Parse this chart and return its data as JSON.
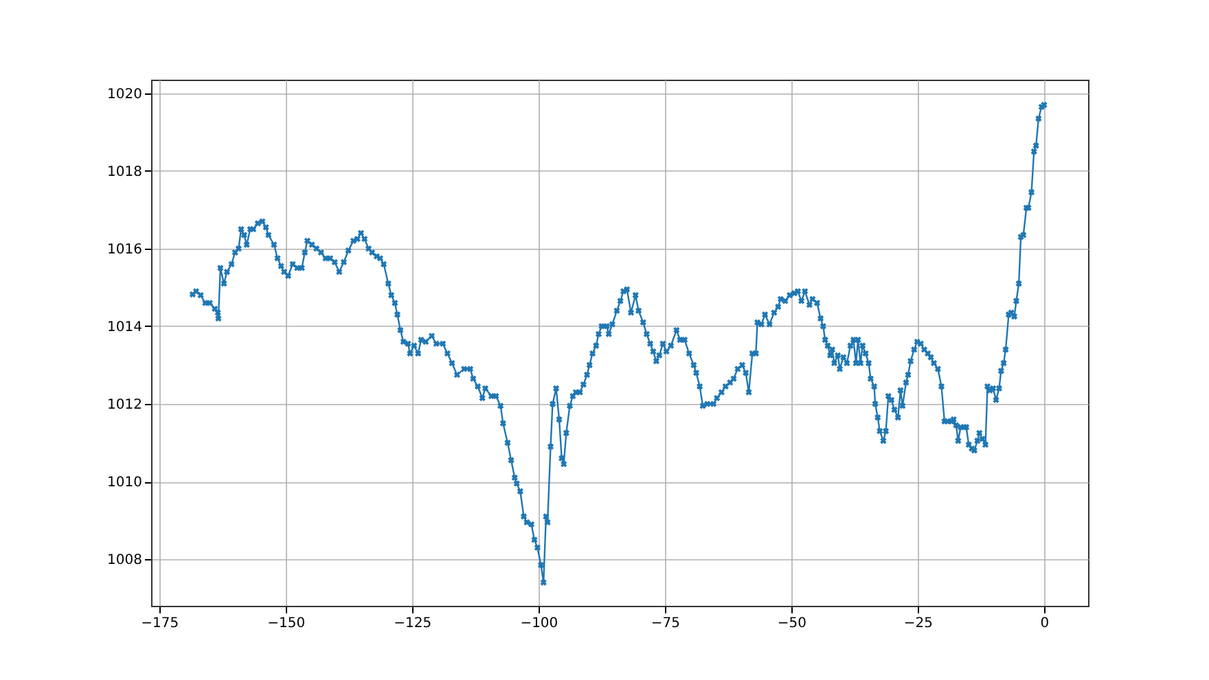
{
  "chart_data": {
    "type": "line",
    "marker": "cross",
    "line_style": "solid",
    "grid": true,
    "xlim": [
      -176.6,
      8.7
    ],
    "ylim": [
      1006.8,
      1020.35
    ],
    "xticks": [
      -175,
      -150,
      -125,
      -100,
      -75,
      -50,
      -25,
      0
    ],
    "yticks": [
      1008,
      1010,
      1012,
      1014,
      1016,
      1018,
      1020
    ],
    "series": [
      {
        "color": "#1f77b4",
        "x": [
          -168.4,
          -167.7,
          -166.8,
          -165.9,
          -165,
          -164,
          -163.4,
          -163.3,
          -162.9,
          -162.2,
          -161.6,
          -160.7,
          -160,
          -159.3,
          -158.8,
          -158.2,
          -157.7,
          -157,
          -156.4,
          -155.5,
          -154.6,
          -153.9,
          -153.4,
          -152.3,
          -151.6,
          -150.9,
          -150.3,
          -149.5,
          -148.6,
          -147.7,
          -146.8,
          -146.2,
          -145.7,
          -144.8,
          -143.9,
          -143,
          -142.1,
          -141.2,
          -140.3,
          -139.4,
          -138.5,
          -137.6,
          -136.6,
          -135.8,
          -135.1,
          -134.4,
          -133.6,
          -132.9,
          -132,
          -131.3,
          -130.6,
          -129.7,
          -129.1,
          -128.4,
          -127.9,
          -127.3,
          -126.7,
          -125.8,
          -125.4,
          -124.6,
          -123.8,
          -123.2,
          -122.3,
          -121.1,
          -120.2,
          -118.9,
          -118,
          -117.1,
          -116.1,
          -114.7,
          -113.5,
          -112.9,
          -112,
          -111.1,
          -110.5,
          -109.3,
          -108.4,
          -107.5,
          -107,
          -106.1,
          -105.4,
          -104.7,
          -104.3,
          -103.6,
          -102.9,
          -102.3,
          -101.4,
          -100.8,
          -100.2,
          -99.5,
          -99,
          -98.5,
          -98.2,
          -97.6,
          -97.2,
          -96.5,
          -95.9,
          -95.4,
          -95,
          -94.5,
          -93.8,
          -93.2,
          -92.6,
          -91.8,
          -91.1,
          -90.4,
          -89.9,
          -89.3,
          -88.6,
          -88.1,
          -87.5,
          -86.5,
          -86.1,
          -85.4,
          -84.5,
          -83.8,
          -83.2,
          -82.5,
          -81.7,
          -80.8,
          -80.2,
          -79.3,
          -78.6,
          -77.9,
          -77.3,
          -76.7,
          -76.1,
          -75.4,
          -74.7,
          -73.8,
          -72.7,
          -72,
          -71.1,
          -70.2,
          -69.3,
          -68.8,
          -68.1,
          -67.5,
          -66.6,
          -65.4,
          -64.7,
          -63.8,
          -63,
          -62.1,
          -61.4,
          -60.6,
          -59.7,
          -59,
          -58.4,
          -57.7,
          -57,
          -56.7,
          -55.9,
          -55.2,
          -54.3,
          -53.4,
          -52.6,
          -52.1,
          -51.2,
          -50.3,
          -49.4,
          -48.7,
          -48,
          -47.3,
          -46.4,
          -45.8,
          -44.9,
          -44.2,
          -43.7,
          -43.3,
          -42.8,
          -42.3,
          -41.9,
          -41.5,
          -40.8,
          -40.4,
          -39.7,
          -39,
          -38.3,
          -37.7,
          -37.2,
          -36.8,
          -36.3,
          -35.9,
          -35.3,
          -34.7,
          -34.3,
          -33.6,
          -33.4,
          -32.9,
          -32.5,
          -31.8,
          -31.3,
          -30.8,
          -30.2,
          -29.6,
          -28.9,
          -28.4,
          -28,
          -27.3,
          -26.9,
          -26.4,
          -25.7,
          -25.1,
          -24.4,
          -23.7,
          -23,
          -22.4,
          -21.8,
          -21,
          -20.3,
          -19.7,
          -19.1,
          -18.3,
          -17.9,
          -17.4,
          -17,
          -16.5,
          -15.8,
          -15.4,
          -14.9,
          -14.3,
          -13.8,
          -13.2,
          -12.8,
          -12.2,
          -11.6,
          -11.2,
          -10.7,
          -10.1,
          -9.5,
          -8.9,
          -8.5,
          -8,
          -7.6,
          -7,
          -6.5,
          -5.9,
          -5.5,
          -5,
          -4.6,
          -4.1,
          -3.5,
          -3.1,
          -2.5,
          -2,
          -1.6,
          -1.1,
          -0.5,
          0
        ],
        "values": [
          1014.82,
          1014.9,
          1014.8,
          1014.6,
          1014.6,
          1014.45,
          1014.35,
          1014.2,
          1015.5,
          1015.1,
          1015.4,
          1015.6,
          1015.9,
          1016,
          1016.5,
          1016.35,
          1016.1,
          1016.5,
          1016.5,
          1016.65,
          1016.7,
          1016.55,
          1016.35,
          1016.1,
          1015.75,
          1015.55,
          1015.4,
          1015.3,
          1015.6,
          1015.5,
          1015.5,
          1015.9,
          1016.2,
          1016.1,
          1016,
          1015.9,
          1015.75,
          1015.75,
          1015.65,
          1015.4,
          1015.65,
          1015.95,
          1016.2,
          1016.25,
          1016.4,
          1016.25,
          1016,
          1015.9,
          1015.8,
          1015.75,
          1015.6,
          1015.1,
          1014.8,
          1014.6,
          1014.3,
          1013.9,
          1013.6,
          1013.55,
          1013.3,
          1013.5,
          1013.3,
          1013.65,
          1013.6,
          1013.75,
          1013.55,
          1013.55,
          1013.3,
          1013.05,
          1012.75,
          1012.9,
          1012.9,
          1012.65,
          1012.45,
          1012.15,
          1012.4,
          1012.2,
          1012.2,
          1011.95,
          1011.5,
          1011,
          1010.55,
          1010.1,
          1009.95,
          1009.75,
          1009.1,
          1008.95,
          1008.9,
          1008.5,
          1008.3,
          1007.85,
          1007.4,
          1009.1,
          1008.95,
          1010.9,
          1012,
          1012.4,
          1011.6,
          1010.6,
          1010.45,
          1011.25,
          1011.95,
          1012.2,
          1012.3,
          1012.3,
          1012.5,
          1012.75,
          1013,
          1013.3,
          1013.5,
          1013.8,
          1014,
          1014,
          1013.8,
          1014.05,
          1014.4,
          1014.65,
          1014.9,
          1014.95,
          1014.35,
          1014.8,
          1014.4,
          1014.1,
          1013.8,
          1013.55,
          1013.35,
          1013.1,
          1013.25,
          1013.55,
          1013.35,
          1013.5,
          1013.9,
          1013.65,
          1013.65,
          1013.3,
          1013,
          1012.8,
          1012.45,
          1011.95,
          1012,
          1012,
          1012.15,
          1012.3,
          1012.45,
          1012.55,
          1012.65,
          1012.9,
          1013,
          1012.8,
          1012.3,
          1013.3,
          1013.3,
          1014.1,
          1014.05,
          1014.3,
          1014.05,
          1014.35,
          1014.5,
          1014.7,
          1014.65,
          1014.8,
          1014.85,
          1014.9,
          1014.65,
          1014.9,
          1014.55,
          1014.7,
          1014.6,
          1014.2,
          1014,
          1013.65,
          1013.5,
          1013.25,
          1013.4,
          1013.05,
          1013.25,
          1012.9,
          1013.2,
          1013.05,
          1013.5,
          1013.65,
          1013.05,
          1013.65,
          1013.05,
          1013.5,
          1013.3,
          1013.05,
          1012.65,
          1012.45,
          1012,
          1011.65,
          1011.3,
          1011.05,
          1011.3,
          1012.2,
          1012.1,
          1011.85,
          1011.65,
          1012.35,
          1011.95,
          1012.55,
          1012.75,
          1013.1,
          1013.4,
          1013.6,
          1013.55,
          1013.4,
          1013.3,
          1013.2,
          1013.05,
          1012.9,
          1012.45,
          1011.55,
          1011.55,
          1011.55,
          1011.6,
          1011.45,
          1011.05,
          1011.4,
          1011.4,
          1011.4,
          1010.95,
          1010.85,
          1010.8,
          1011.05,
          1011.25,
          1011.1,
          1010.95,
          1012.45,
          1012.35,
          1012.4,
          1012.1,
          1012.4,
          1012.85,
          1013.05,
          1013.4,
          1014.3,
          1014.35,
          1014.25,
          1014.65,
          1015.1,
          1016.3,
          1016.35,
          1017.05,
          1017.05,
          1017.45,
          1018.5,
          1018.65,
          1019.35,
          1019.65,
          1019.7
        ]
      }
    ]
  }
}
